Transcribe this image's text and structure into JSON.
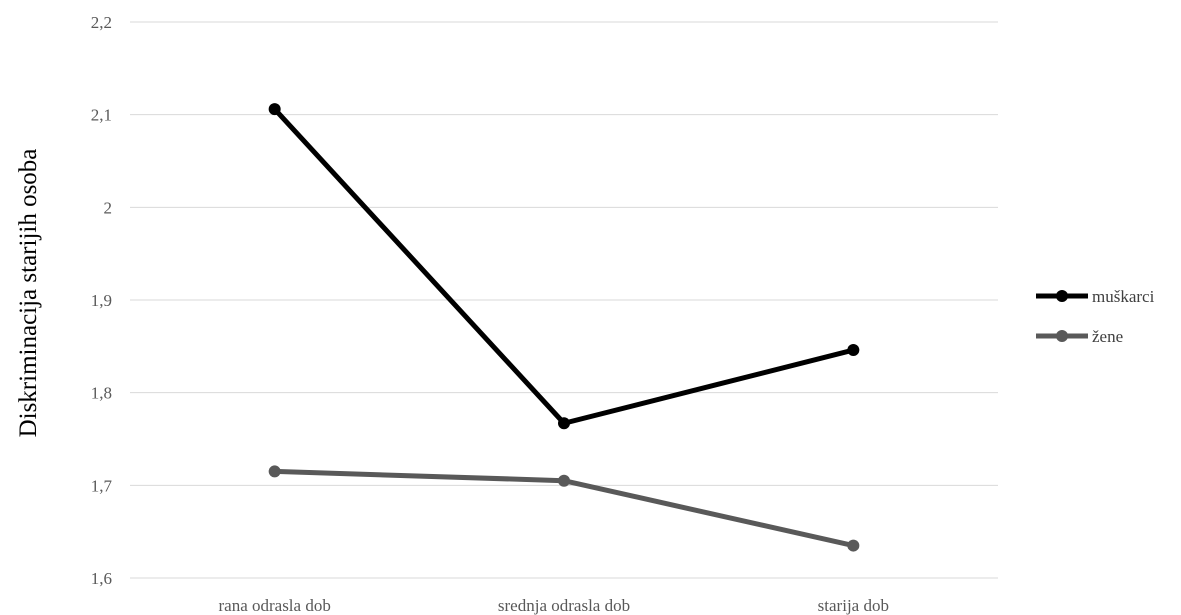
{
  "chart_data": {
    "type": "line",
    "title": "",
    "xlabel": "",
    "ylabel": "Diskriminacija starijih osoba",
    "categories": [
      "rana odrasla dob",
      "srednja odrasla dob",
      "starija dob"
    ],
    "y_ticks": [
      "1,6",
      "1,7",
      "1,8",
      "1,9",
      "2",
      "2,1",
      "2,2"
    ],
    "ylim": [
      1.6,
      2.2
    ],
    "grid": true,
    "legend_position": "right",
    "series": [
      {
        "name": "muškarci",
        "values": [
          2.106,
          1.767,
          1.846
        ],
        "color": "#000000"
      },
      {
        "name": "žene",
        "values": [
          1.715,
          1.705,
          1.635
        ],
        "color": "#595959"
      }
    ]
  }
}
